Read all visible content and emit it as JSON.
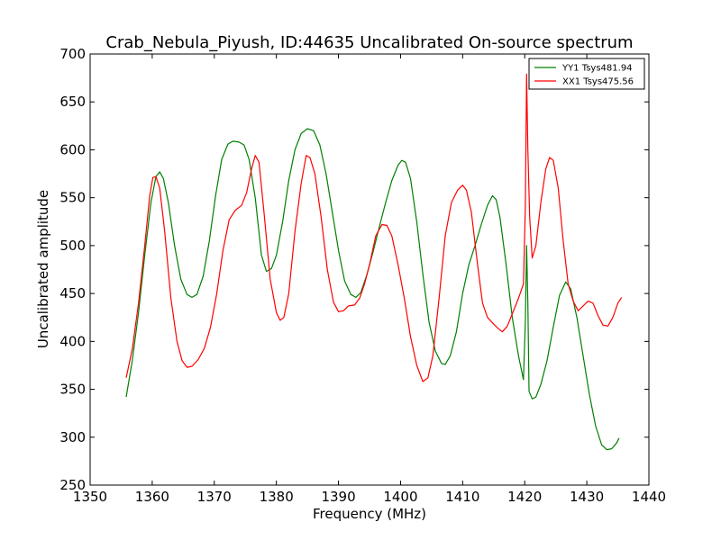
{
  "chart_data": {
    "type": "line",
    "title": "Crab_Nebula_Piyush, ID:44635 Uncalibrated On-source spectrum",
    "xlabel": "Frequency (MHz)",
    "ylabel": "Uncalibrated amplitude",
    "xlim": [
      1350,
      1440
    ],
    "ylim": [
      250,
      700
    ],
    "xticks": [
      1350,
      1360,
      1370,
      1380,
      1390,
      1400,
      1410,
      1420,
      1430,
      1440
    ],
    "yticks": [
      250,
      300,
      350,
      400,
      450,
      500,
      550,
      600,
      650,
      700
    ],
    "grid": false,
    "legend_position": "top-right",
    "series": [
      {
        "name": "YY1 Tsys481.94",
        "color": "#008000",
        "points": [
          [
            1355.8,
            342
          ],
          [
            1356.8,
            380
          ],
          [
            1357.8,
            430
          ],
          [
            1358.8,
            490
          ],
          [
            1359.8,
            545
          ],
          [
            1360.6,
            572
          ],
          [
            1361.2,
            577
          ],
          [
            1361.8,
            570
          ],
          [
            1362.6,
            545
          ],
          [
            1363.6,
            500
          ],
          [
            1364.6,
            465
          ],
          [
            1365.6,
            449
          ],
          [
            1366.4,
            446
          ],
          [
            1367.2,
            449
          ],
          [
            1368.2,
            468
          ],
          [
            1369.2,
            505
          ],
          [
            1370.2,
            552
          ],
          [
            1371.2,
            590
          ],
          [
            1372.2,
            606
          ],
          [
            1373.0,
            609
          ],
          [
            1374.0,
            608
          ],
          [
            1374.8,
            605
          ],
          [
            1375.6,
            590
          ],
          [
            1376.6,
            550
          ],
          [
            1377.6,
            490
          ],
          [
            1378.4,
            473
          ],
          [
            1379.2,
            476
          ],
          [
            1380.0,
            490
          ],
          [
            1381.0,
            525
          ],
          [
            1382.0,
            568
          ],
          [
            1383.0,
            600
          ],
          [
            1384.0,
            617
          ],
          [
            1385.0,
            622
          ],
          [
            1386.0,
            620
          ],
          [
            1387.0,
            605
          ],
          [
            1388.0,
            575
          ],
          [
            1389.0,
            535
          ],
          [
            1390.0,
            495
          ],
          [
            1391.0,
            463
          ],
          [
            1392.0,
            449
          ],
          [
            1392.8,
            446
          ],
          [
            1393.6,
            451
          ],
          [
            1394.6,
            470
          ],
          [
            1395.6,
            494
          ],
          [
            1396.6,
            520
          ],
          [
            1397.6,
            545
          ],
          [
            1398.6,
            568
          ],
          [
            1399.6,
            584
          ],
          [
            1400.2,
            589
          ],
          [
            1400.8,
            587
          ],
          [
            1401.6,
            570
          ],
          [
            1402.6,
            525
          ],
          [
            1403.6,
            470
          ],
          [
            1404.6,
            420
          ],
          [
            1405.6,
            390
          ],
          [
            1406.6,
            377
          ],
          [
            1407.2,
            376
          ],
          [
            1408.0,
            385
          ],
          [
            1409.0,
            410
          ],
          [
            1410.0,
            450
          ],
          [
            1411.0,
            480
          ],
          [
            1412.0,
            500
          ],
          [
            1413.0,
            522
          ],
          [
            1414.0,
            542
          ],
          [
            1414.8,
            552
          ],
          [
            1415.4,
            548
          ],
          [
            1416.0,
            530
          ],
          [
            1417.0,
            480
          ],
          [
            1418.0,
            425
          ],
          [
            1419.0,
            385
          ],
          [
            1419.8,
            360
          ],
          [
            1420.1,
            420
          ],
          [
            1420.3,
            500
          ],
          [
            1420.5,
            440
          ],
          [
            1420.7,
            348
          ],
          [
            1421.2,
            340
          ],
          [
            1421.8,
            342
          ],
          [
            1422.6,
            355
          ],
          [
            1423.6,
            380
          ],
          [
            1424.6,
            415
          ],
          [
            1425.6,
            448
          ],
          [
            1426.6,
            462
          ],
          [
            1427.4,
            455
          ],
          [
            1428.4,
            425
          ],
          [
            1429.4,
            385
          ],
          [
            1430.4,
            345
          ],
          [
            1431.4,
            312
          ],
          [
            1432.4,
            292
          ],
          [
            1433.2,
            287
          ],
          [
            1434.0,
            288
          ],
          [
            1434.8,
            294
          ],
          [
            1435.2,
            299
          ]
        ]
      },
      {
        "name": "XX1 Tsys475.56",
        "color": "#ff0000",
        "points": [
          [
            1355.8,
            362
          ],
          [
            1356.8,
            392
          ],
          [
            1357.8,
            440
          ],
          [
            1358.8,
            500
          ],
          [
            1359.6,
            552
          ],
          [
            1360.1,
            571
          ],
          [
            1360.6,
            572
          ],
          [
            1361.2,
            560
          ],
          [
            1362.0,
            515
          ],
          [
            1363.0,
            445
          ],
          [
            1364.0,
            400
          ],
          [
            1364.8,
            380
          ],
          [
            1365.6,
            373
          ],
          [
            1366.4,
            374
          ],
          [
            1367.4,
            381
          ],
          [
            1368.4,
            393
          ],
          [
            1369.4,
            415
          ],
          [
            1370.4,
            450
          ],
          [
            1371.4,
            495
          ],
          [
            1372.4,
            527
          ],
          [
            1373.4,
            537
          ],
          [
            1374.4,
            542
          ],
          [
            1375.2,
            555
          ],
          [
            1376.0,
            580
          ],
          [
            1376.6,
            594
          ],
          [
            1377.2,
            587
          ],
          [
            1378.0,
            535
          ],
          [
            1379.0,
            465
          ],
          [
            1380.0,
            430
          ],
          [
            1380.6,
            422
          ],
          [
            1381.2,
            425
          ],
          [
            1382.0,
            450
          ],
          [
            1383.0,
            515
          ],
          [
            1384.0,
            565
          ],
          [
            1384.8,
            594
          ],
          [
            1385.4,
            592
          ],
          [
            1386.2,
            575
          ],
          [
            1387.2,
            530
          ],
          [
            1388.2,
            475
          ],
          [
            1389.2,
            441
          ],
          [
            1390.0,
            431
          ],
          [
            1390.8,
            432
          ],
          [
            1391.6,
            437
          ],
          [
            1392.6,
            438
          ],
          [
            1393.4,
            445
          ],
          [
            1394.2,
            460
          ],
          [
            1395.0,
            480
          ],
          [
            1396.0,
            510
          ],
          [
            1397.0,
            522
          ],
          [
            1397.8,
            521
          ],
          [
            1398.6,
            510
          ],
          [
            1399.6,
            480
          ],
          [
            1400.6,
            445
          ],
          [
            1401.6,
            405
          ],
          [
            1402.6,
            375
          ],
          [
            1403.6,
            358
          ],
          [
            1404.4,
            362
          ],
          [
            1405.2,
            385
          ],
          [
            1406.2,
            445
          ],
          [
            1407.2,
            510
          ],
          [
            1408.2,
            545
          ],
          [
            1409.2,
            558
          ],
          [
            1410.0,
            563
          ],
          [
            1410.6,
            558
          ],
          [
            1411.4,
            535
          ],
          [
            1412.4,
            480
          ],
          [
            1413.2,
            440
          ],
          [
            1414.0,
            425
          ],
          [
            1415.0,
            418
          ],
          [
            1415.8,
            413
          ],
          [
            1416.4,
            410
          ],
          [
            1417.2,
            416
          ],
          [
            1418.2,
            432
          ],
          [
            1419.0,
            445
          ],
          [
            1419.8,
            460
          ],
          [
            1420.1,
            540
          ],
          [
            1420.3,
            679
          ],
          [
            1420.5,
            600
          ],
          [
            1420.8,
            530
          ],
          [
            1421.2,
            487
          ],
          [
            1421.8,
            500
          ],
          [
            1422.6,
            545
          ],
          [
            1423.4,
            580
          ],
          [
            1424.0,
            592
          ],
          [
            1424.6,
            589
          ],
          [
            1425.4,
            560
          ],
          [
            1426.2,
            505
          ],
          [
            1427.0,
            460
          ],
          [
            1427.8,
            442
          ],
          [
            1428.6,
            432
          ],
          [
            1429.4,
            437
          ],
          [
            1430.2,
            442
          ],
          [
            1431.0,
            440
          ],
          [
            1431.8,
            427
          ],
          [
            1432.6,
            417
          ],
          [
            1433.4,
            416
          ],
          [
            1434.2,
            425
          ],
          [
            1435.0,
            440
          ],
          [
            1435.6,
            446
          ]
        ]
      }
    ]
  }
}
